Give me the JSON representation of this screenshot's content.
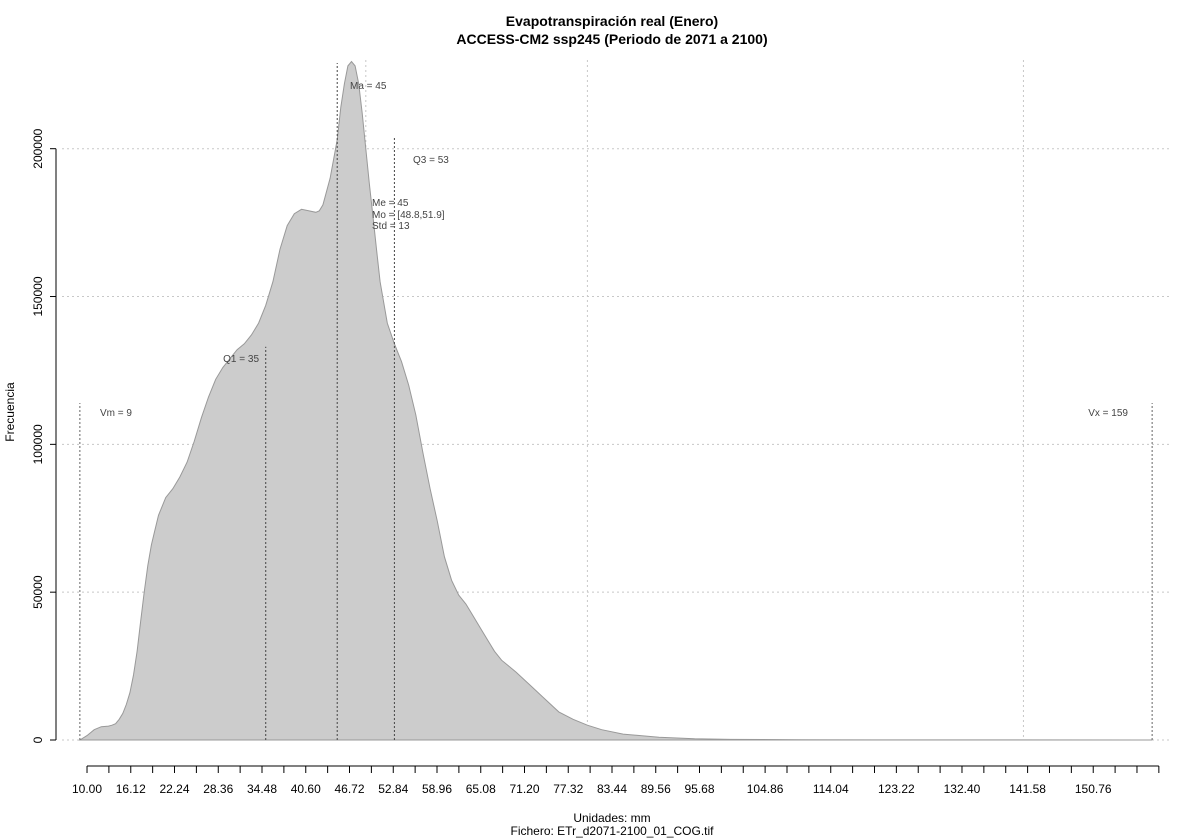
{
  "chart_data": {
    "type": "area",
    "title": "Evapotranspiración real (Enero)",
    "subtitle": "ACCESS-CM2 ssp245 (Periodo de 2071 a 2100)",
    "xlabel": "Unidades: mm",
    "ylabel": "Frecuencia",
    "footer": "Fichero: ETr_d2071-2100_01_COG.tif",
    "xlim": [
      6.5,
      161.5
    ],
    "ylim": [
      0,
      230000
    ],
    "grid": true,
    "fill_color": "#cccccc",
    "line_color": "#999999",
    "y_ticks": [
      0,
      50000,
      100000,
      150000,
      200000
    ],
    "y_tick_labels": [
      "0",
      "50000",
      "100000",
      "150000",
      "200000"
    ],
    "x_tick_labels": [
      "10.00",
      "16.12",
      "22.24",
      "28.36",
      "34.48",
      "40.60",
      "46.72",
      "52.84",
      "58.96",
      "65.08",
      "71.20",
      "77.32",
      "83.44",
      "89.56",
      "95.68",
      "104.86",
      "114.04",
      "123.22",
      "132.40",
      "141.58",
      "150.76"
    ],
    "x_tick_values": [
      10.0,
      16.12,
      22.24,
      28.36,
      34.48,
      40.6,
      46.72,
      52.84,
      58.96,
      65.08,
      71.2,
      77.32,
      83.44,
      89.56,
      95.68,
      104.86,
      114.04,
      123.22,
      132.4,
      141.58,
      150.76
    ],
    "x_minor_ticks": [
      10.0,
      13.06,
      16.12,
      19.18,
      22.24,
      25.3,
      28.36,
      31.42,
      34.48,
      37.54,
      40.6,
      43.66,
      46.72,
      49.78,
      52.84,
      55.9,
      58.96,
      62.02,
      65.08,
      68.14,
      71.2,
      74.26,
      77.32,
      80.38,
      83.44,
      86.5,
      89.56,
      92.62,
      95.68,
      98.74,
      101.8,
      104.86,
      107.92,
      110.98,
      114.04,
      117.1,
      120.16,
      123.22,
      126.28,
      129.34,
      132.4,
      135.46,
      138.52,
      141.58,
      144.64,
      147.7,
      150.76,
      153.82,
      156.88,
      159.94
    ],
    "x_grid": [
      49.0,
      80.0,
      141.0
    ],
    "density": {
      "x": [
        9.0,
        10.0,
        11.0,
        12.0,
        13.0,
        13.5,
        14.0,
        14.5,
        15.0,
        15.5,
        16.0,
        16.5,
        17.0,
        17.5,
        18.0,
        18.5,
        19.0,
        19.5,
        20.0,
        21.0,
        22.0,
        23.0,
        24.0,
        25.0,
        26.0,
        27.0,
        28.0,
        29.0,
        30.0,
        31.0,
        32.0,
        33.0,
        34.0,
        35.0,
        36.0,
        37.0,
        38.0,
        39.0,
        40.0,
        41.0,
        42.0,
        42.5,
        43.0,
        44.0,
        45.0,
        45.5,
        46.0,
        46.5,
        47.0,
        47.5,
        48.0,
        48.5,
        49.0,
        49.5,
        50.0,
        50.5,
        51.0,
        52.0,
        53.0,
        54.0,
        55.0,
        56.0,
        57.0,
        58.0,
        59.0,
        60.0,
        61.0,
        62.0,
        63.0,
        64.0,
        65.0,
        66.0,
        67.0,
        68.0,
        69.0,
        70.0,
        72.0,
        74.0,
        76.0,
        78.0,
        80.0,
        82.0,
        85.0,
        90.0,
        95.0,
        100.0,
        110.0,
        120.0,
        140.0,
        159.0
      ],
      "y": [
        0,
        1500,
        3500,
        4500,
        4700,
        5000,
        5500,
        7000,
        9000,
        12000,
        16000,
        22000,
        30000,
        40000,
        50000,
        59000,
        66000,
        71000,
        76000,
        82000,
        85000,
        89000,
        94000,
        101000,
        109000,
        116000,
        122000,
        126000,
        129000,
        132000,
        134000,
        137000,
        141000,
        147000,
        155000,
        166000,
        174000,
        178000,
        179500,
        179000,
        178500,
        179000,
        181000,
        190000,
        203000,
        214000,
        222000,
        228000,
        229500,
        228000,
        222000,
        212000,
        200000,
        188000,
        177000,
        166000,
        155000,
        141000,
        134000,
        128000,
        120000,
        110000,
        97000,
        85000,
        74000,
        62000,
        54000,
        49000,
        46000,
        42000,
        38000,
        34000,
        30000,
        27000,
        25000,
        23000,
        18500,
        14000,
        9500,
        7000,
        5000,
        3500,
        2000,
        900,
        400,
        200,
        100,
        50,
        20,
        0
      ]
    },
    "stats": [
      {
        "key": "vm",
        "label": "Vm = 9",
        "x": 9,
        "top": 114000
      },
      {
        "key": "q1",
        "label": "Q1 = 35",
        "x": 35,
        "top": 133000
      },
      {
        "key": "ma",
        "label": "Ma = 45",
        "x": 45,
        "top": 229000
      },
      {
        "key": "q3",
        "label": "Q3 = 53",
        "x": 53,
        "top": 204000
      },
      {
        "key": "vx",
        "label": "Vx = 159",
        "x": 159,
        "top": 114000
      }
    ],
    "stats_box": {
      "me": "Me = 45",
      "mo": "Mo = [48.8,51.9]",
      "std": "Std = 13"
    }
  }
}
